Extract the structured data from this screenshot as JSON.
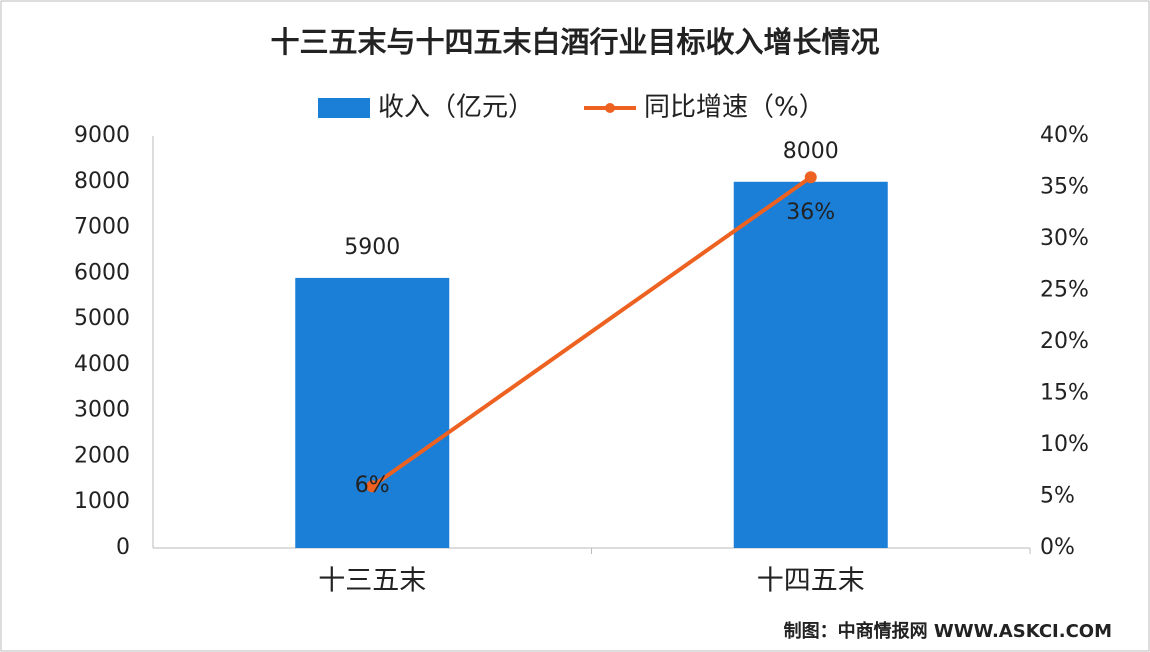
{
  "chart_data": {
    "type": "bar",
    "title": "十三五末与十四五末白酒行业目标收入增长情况",
    "categories": [
      "十三五末",
      "十四五末"
    ],
    "series": [
      {
        "name": "收入（亿元）",
        "type": "bar",
        "color": "#1b7fd8",
        "values": [
          5900,
          8000
        ]
      },
      {
        "name": "同比增速（%）",
        "type": "line",
        "axis": "y2",
        "color": "#ed6121",
        "values": [
          6,
          36
        ],
        "value_labels": [
          "6%",
          "36%"
        ]
      }
    ],
    "ylim": [
      0,
      9000
    ],
    "yticks": [
      0,
      1000,
      2000,
      3000,
      4000,
      5000,
      6000,
      7000,
      8000,
      9000
    ],
    "y2lim": [
      0,
      40
    ],
    "y2ticks": [
      {
        "value": 0,
        "label": "0%"
      },
      {
        "value": 5,
        "label": "5%"
      },
      {
        "value": 10,
        "label": "10%"
      },
      {
        "value": 15,
        "label": "15%"
      },
      {
        "value": 20,
        "label": "20%"
      },
      {
        "value": 25,
        "label": "25%"
      },
      {
        "value": 30,
        "label": "30%"
      },
      {
        "value": 35,
        "label": "35%"
      },
      {
        "value": 40,
        "label": "40%"
      }
    ],
    "grid": false,
    "legend": "top",
    "source": "制图：中商情报网 WWW.ASKCI.COM"
  }
}
